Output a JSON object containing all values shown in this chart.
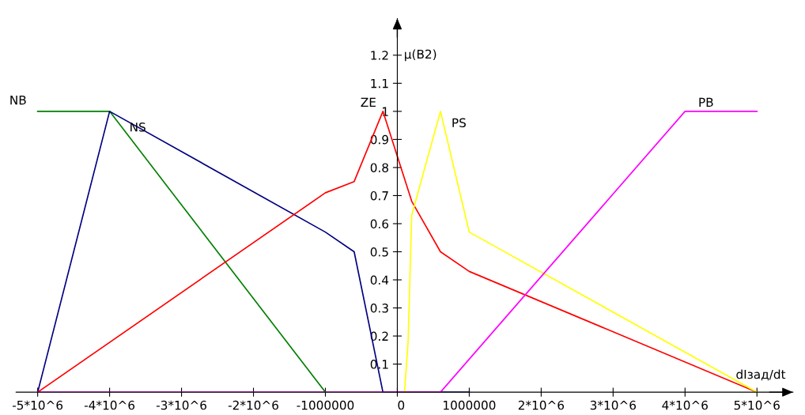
{
  "chart_data": {
    "type": "line",
    "xlabel": "dIзад/dt",
    "ylabel": "μ(B2)",
    "xlim": [
      -5300000,
      5500000
    ],
    "ylim": [
      0,
      1.33
    ],
    "xticks": [
      {
        "value": -5000000,
        "label": "-5*10^6"
      },
      {
        "value": -4000000,
        "label": "-4*10^6"
      },
      {
        "value": -3000000,
        "label": "-3*10^6"
      },
      {
        "value": -2000000,
        "label": "-2*10^6"
      },
      {
        "value": -1000000,
        "label": "-1000000"
      },
      {
        "value": 0,
        "label": "0"
      },
      {
        "value": 1000000,
        "label": "1000000"
      },
      {
        "value": 2000000,
        "label": "2*10^6"
      },
      {
        "value": 3000000,
        "label": "3*10^6"
      },
      {
        "value": 4000000,
        "label": "4*10^6"
      },
      {
        "value": 5000000,
        "label": "5*10^6"
      }
    ],
    "yticks": [
      0.1,
      0.2,
      0.3,
      0.4,
      0.5,
      0.6,
      0.7,
      0.8,
      0.9,
      1.1,
      1.2,
      {
        "value": 1,
        "label": "1"
      }
    ],
    "grid": false,
    "legend": false,
    "marker": "none",
    "line_style": "solid",
    "series": [
      {
        "name": "NB",
        "color": "#008000",
        "x": [
          -5000000,
          -4000000,
          -1000000
        ],
        "values": [
          1,
          1,
          0
        ]
      },
      {
        "name": "NS",
        "color": "#000080",
        "x": [
          -5000000,
          -4000000,
          -1000000,
          -600000,
          -200000,
          1000000
        ],
        "values": [
          0,
          1,
          0.57,
          0.5,
          0,
          0
        ]
      },
      {
        "name": "ZE",
        "color": "#ff0000",
        "x": [
          -5000000,
          -1000000,
          -600000,
          -200000,
          200000,
          600000,
          1000000,
          5000000
        ],
        "values": [
          0,
          0.71,
          0.75,
          1,
          0.68,
          0.5,
          0.43,
          0
        ]
      },
      {
        "name": "PS",
        "color": "#ffff00",
        "x": [
          100000,
          150000,
          200000,
          600000,
          1000000,
          5000000
        ],
        "values": [
          0,
          0.18,
          0.63,
          1,
          0.57,
          0
        ]
      },
      {
        "name": "PB",
        "color": "#ff00ff",
        "x": [
          -5000000,
          600000,
          4000000,
          5000000
        ],
        "values": [
          0,
          0,
          1,
          1
        ]
      }
    ]
  }
}
